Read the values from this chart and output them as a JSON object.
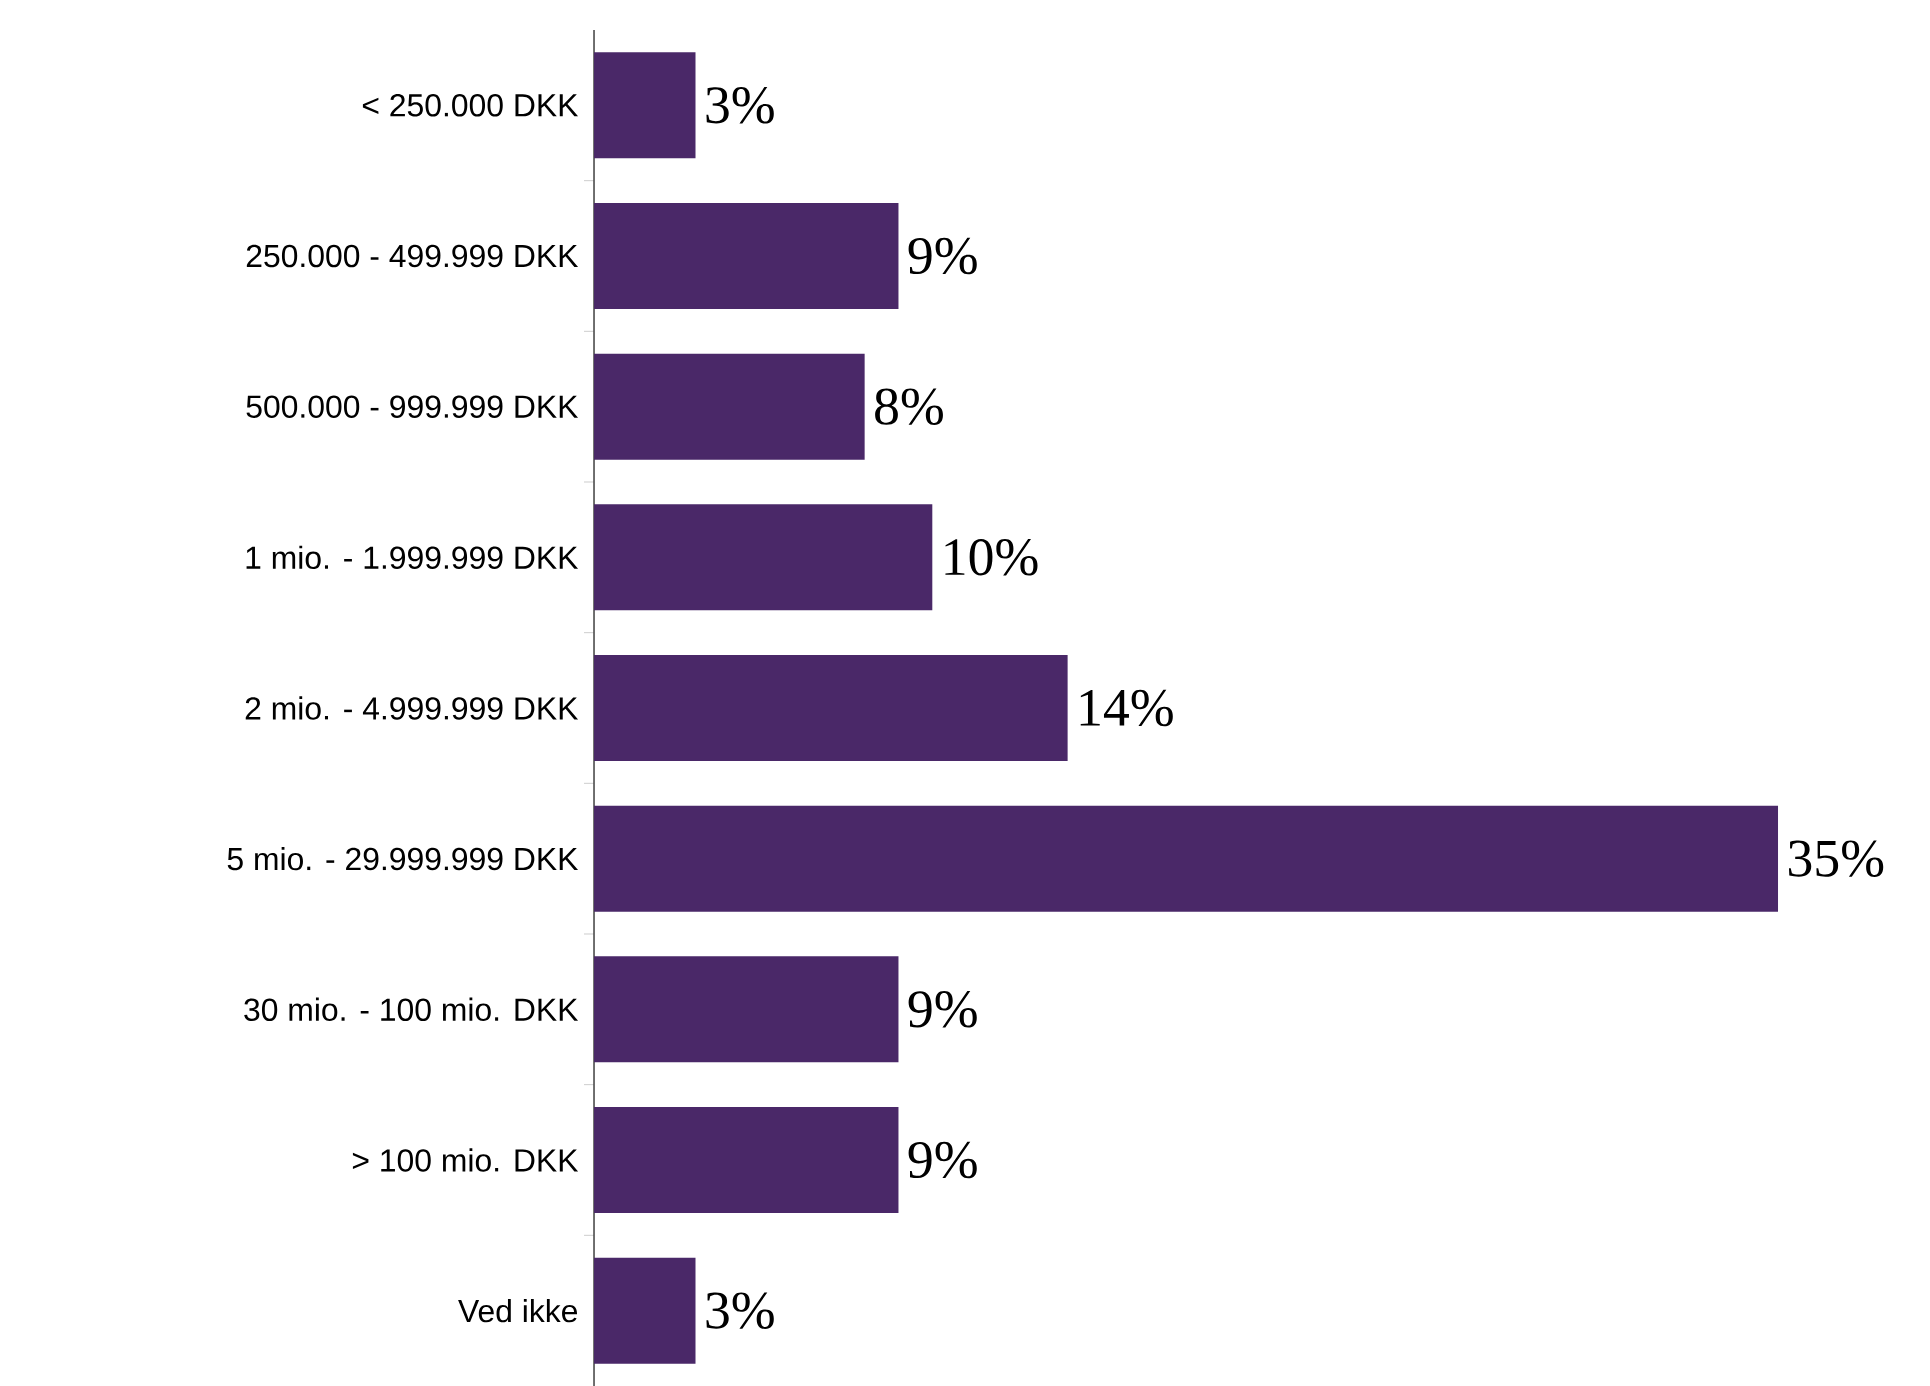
{
  "chart_data": {
    "type": "bar",
    "orientation": "horizontal",
    "categories": [
      "< 250.000 DKK",
      "250.000 - 499.999 DKK",
      "500.000 - 999.999 DKK",
      "1 mio. - 1.999.999 DKK",
      "2 mio. - 4.999.999 DKK",
      "5 mio. - 29.999.999 DKK",
      "30 mio. - 100 mio. DKK",
      "> 100 mio. DKK",
      "Ved ikke"
    ],
    "values": [
      3,
      9,
      8,
      10,
      14,
      35,
      9,
      9,
      3
    ],
    "value_labels": [
      "3%",
      "9%",
      "8%",
      "10%",
      "14%",
      "35%",
      "9%",
      "9%",
      "3%"
    ],
    "color": "#4a2868"
  }
}
